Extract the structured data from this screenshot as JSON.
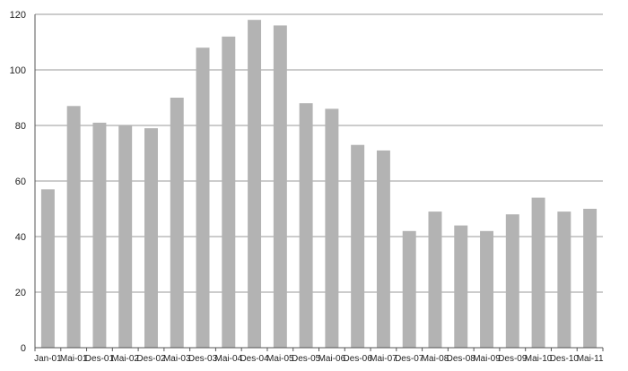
{
  "chart_data": {
    "type": "bar",
    "categories": [
      "Jan-01",
      "Mai-01",
      "Des-01",
      "Mai-02",
      "Des-02",
      "Mai-03",
      "Des-03",
      "Mai-04",
      "Des-04",
      "Mai-05",
      "Des-05",
      "Mai-06",
      "Des-06",
      "Mai-07",
      "Des-07",
      "Mai-08",
      "Des-08",
      "Mai-09",
      "Des-09",
      "Mai-10",
      "Des-10",
      "Mai-11"
    ],
    "values": [
      57,
      87,
      81,
      80,
      79,
      90,
      108,
      112,
      118,
      116,
      88,
      86,
      73,
      71,
      42,
      49,
      44,
      42,
      48,
      54,
      49,
      50
    ],
    "ylim": [
      0,
      120
    ],
    "yticks": [
      0,
      20,
      40,
      60,
      80,
      100,
      120
    ],
    "grid": true,
    "bar_color": "#b3b3b3",
    "grid_color": "#9a9a9a",
    "axis_color": "#555555"
  }
}
